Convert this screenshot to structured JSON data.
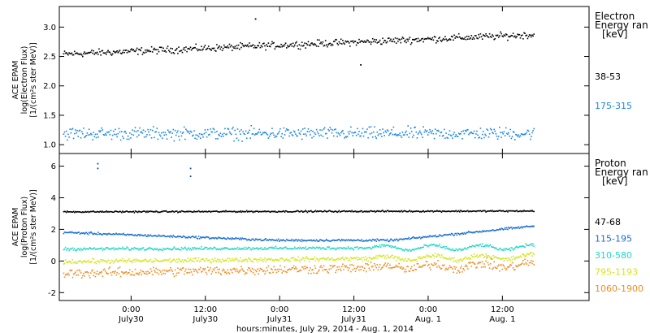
{
  "chart_data": {
    "type": "scatter",
    "xlabel": "hours:minutes, July 29, 2014 - Aug. 1, 2014",
    "x_ticks": [
      {
        "time": "0:00",
        "date": "July30",
        "hour": 24
      },
      {
        "time": "12:00",
        "date": "July30",
        "hour": 36
      },
      {
        "time": "0:00",
        "date": "July31",
        "hour": 48
      },
      {
        "time": "12:00",
        "date": "July31",
        "hour": 60
      },
      {
        "time": "0:00",
        "date": "Aug. 1",
        "hour": 72
      },
      {
        "time": "12:00",
        "date": "Aug. 1",
        "hour": 84
      }
    ],
    "x_range_hours": [
      12.4,
      98
    ],
    "data_end_hour": 89,
    "panels": [
      {
        "id": "electron",
        "ylabel_lines": [
          "ACE EPAM",
          "log(Electron Flux)",
          "[1/(cm²s ster MeV)]"
        ],
        "ylim": [
          0.85,
          3.35
        ],
        "y_ticks": [
          "1.0",
          "1.5",
          "2.0",
          "2.5",
          "3.0"
        ],
        "y_tick_values": [
          1.0,
          1.5,
          2.0,
          2.5,
          3.0
        ],
        "legend_title_lines": [
          "Electron",
          "Energy ran",
          "[keV]"
        ],
        "series": [
          {
            "name": "38-53",
            "color": "#000000",
            "start": 2.55,
            "end": 2.88,
            "noise": 0.05
          },
          {
            "name": "175-315",
            "color": "#1a86e0",
            "start": 1.2,
            "end": 1.2,
            "noise": 0.09
          }
        ],
        "outliers": [
          [
            44,
            3.15
          ],
          [
            61,
            2.37
          ]
        ]
      },
      {
        "id": "proton",
        "ylabel_lines": [
          "ACE EPAM",
          "log(Proton Flux)",
          "[1/(cm²s ster MeV)]"
        ],
        "ylim": [
          -2.5,
          6.8
        ],
        "y_ticks": [
          "-2",
          "0",
          "2",
          "4",
          "6"
        ],
        "y_tick_values": [
          -2,
          0,
          2,
          4,
          6
        ],
        "legend_title_lines": [
          "Proton",
          "Energy ran",
          "[keV]"
        ],
        "series": [
          {
            "name": "47-68",
            "color": "#000000",
            "start": 3.15,
            "end": 3.2,
            "noise": 0.04
          },
          {
            "name": "115-195",
            "color": "#1a6fd1",
            "start": 1.85,
            "end": 2.25,
            "noise": 0.06
          },
          {
            "name": "310-580",
            "color": "#20d6c8",
            "start": 0.8,
            "end": 0.9,
            "noise": 0.08
          },
          {
            "name": "795-1193",
            "color": "#d2e61c",
            "start": 0.0,
            "end": 0.3,
            "noise": 0.12
          },
          {
            "name": "1060-1900",
            "color": "#f08c1e",
            "start": -0.75,
            "end": -0.2,
            "noise": 0.25
          }
        ],
        "outliers": [
          [
            18.5,
            6.2
          ],
          [
            18.5,
            5.9
          ],
          [
            33.5,
            5.9
          ],
          [
            33.5,
            5.4
          ]
        ]
      }
    ]
  }
}
